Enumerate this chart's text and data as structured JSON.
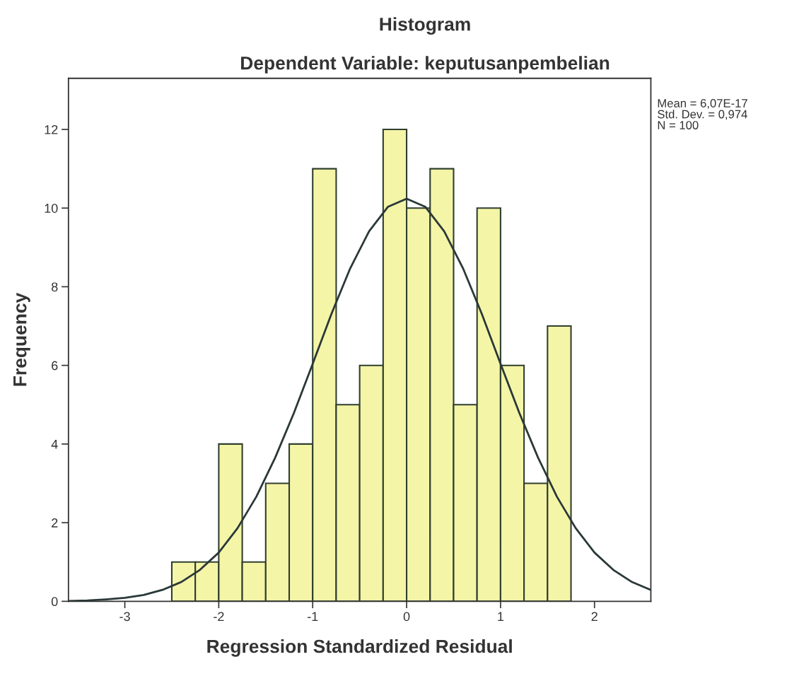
{
  "chart_data": {
    "type": "histogram",
    "title": "Histogram",
    "subtitle": "Dependent Variable: keputusanpembelian",
    "xlabel": "Regression Standardized Residual",
    "ylabel": "Frequency",
    "bins": [
      -2.5,
      -2.25,
      -2.0,
      -1.75,
      -1.5,
      -1.25,
      -1.0,
      -0.75,
      -0.5,
      -0.25,
      0.0,
      0.25,
      0.5,
      0.75,
      1.0,
      1.25,
      1.5,
      1.75
    ],
    "values": [
      1,
      1,
      4,
      1,
      3,
      4,
      11,
      5,
      6,
      12,
      10,
      11,
      5,
      10,
      6,
      3,
      7
    ],
    "color": "#f5f5a8",
    "series": [
      {
        "type": "line",
        "color": "#2a3838",
        "x": [
          -3.6,
          -3.4,
          -3.2,
          -3.0,
          -2.8,
          -2.6,
          -2.4,
          -2.2,
          -2.0,
          -1.8,
          -1.6,
          -1.4,
          -1.2,
          -1.0,
          -0.8,
          -0.6,
          -0.4,
          -0.2,
          0.0,
          0.2,
          0.4,
          0.6,
          0.8,
          1.0,
          1.2,
          1.4,
          1.6,
          1.8,
          2.0,
          2.2,
          2.4,
          2.6
        ],
        "values": [
          0.01,
          0.02,
          0.05,
          0.09,
          0.16,
          0.29,
          0.49,
          0.8,
          1.24,
          1.86,
          2.66,
          3.65,
          4.79,
          6.04,
          7.31,
          8.47,
          9.41,
          10.03,
          10.24,
          10.03,
          9.41,
          8.47,
          7.31,
          6.04,
          4.79,
          3.65,
          2.66,
          1.86,
          1.24,
          0.8,
          0.49,
          0.29
        ]
      }
    ],
    "xlim": [
      -3.6,
      2.6
    ],
    "xticks": [
      -3,
      -2,
      -1,
      0,
      1,
      2
    ],
    "ylim": [
      0,
      13.3
    ],
    "yticks": [
      0,
      2,
      4,
      6,
      8,
      10,
      12
    ],
    "annotations": [
      "Mean = 6,07E-17",
      "Std. Dev. = 0,974",
      "N = 100"
    ]
  }
}
